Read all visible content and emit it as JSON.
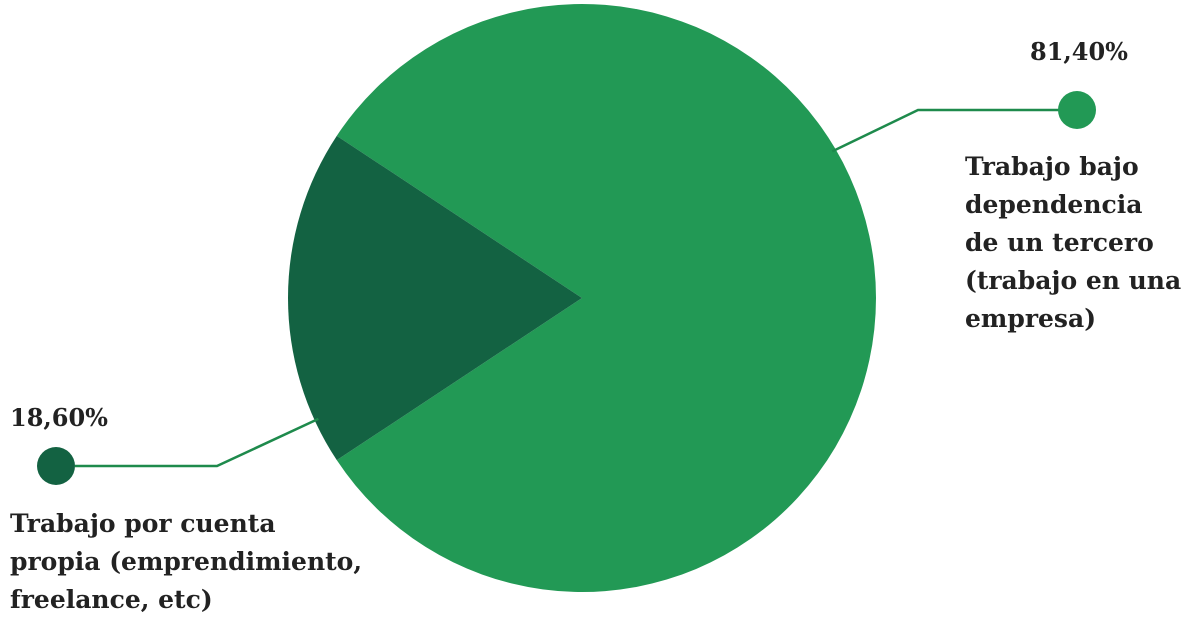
{
  "chart_data": {
    "type": "pie",
    "slices": [
      {
        "label": "Trabajo bajo\ndependencia\nde un tercero\n(trabajo en una\nempresa)",
        "value": 81.4,
        "value_label": "81,40%",
        "color": "#229955"
      },
      {
        "label": "Trabajo por cuenta\npropia (emprendimiento,\nfreelance, etc)",
        "value": 18.6,
        "value_label": "18,60%",
        "color": "#136242"
      }
    ],
    "legend": "none",
    "leader_color": "#1e8a4c"
  }
}
